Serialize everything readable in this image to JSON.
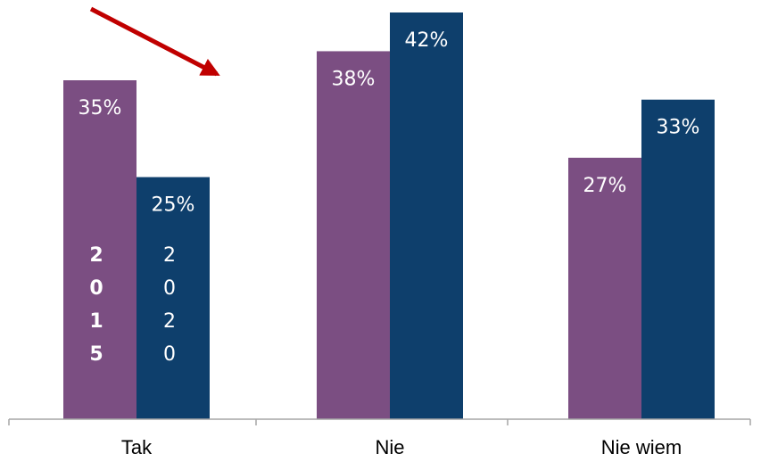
{
  "chart_data": {
    "type": "bar",
    "categories": [
      "Tak",
      "Nie",
      "Nie wiem"
    ],
    "series": [
      {
        "name": "2015",
        "color": "#7B4E82",
        "values": [
          35,
          38,
          27
        ],
        "labels": [
          "35%",
          "38%",
          "27%"
        ]
      },
      {
        "name": "2020",
        "color": "#0E3F6C",
        "values": [
          25,
          42,
          33
        ],
        "labels": [
          "25%",
          "42%",
          "33%"
        ]
      }
    ],
    "legend_in_bars": true,
    "grid": false,
    "ylim": [
      0,
      42
    ]
  },
  "annotation": {
    "type": "arrow",
    "color": "#C00000",
    "points_to": "Nie"
  }
}
